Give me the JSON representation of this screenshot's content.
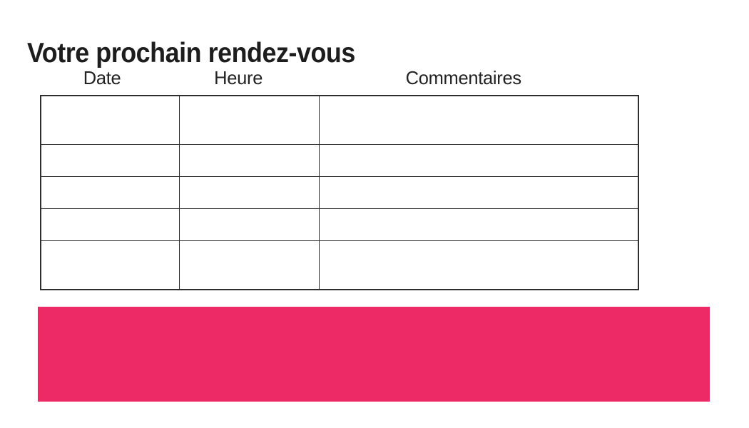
{
  "page": {
    "title": "Votre prochain rendez-vous"
  },
  "table": {
    "headers": [
      "Date",
      "Heure",
      "Commentaires"
    ],
    "rows": [
      [
        "",
        "",
        ""
      ],
      [
        "",
        "",
        ""
      ],
      [
        "",
        "",
        ""
      ],
      [
        "",
        "",
        ""
      ],
      [
        "",
        "",
        ""
      ]
    ]
  },
  "banner": {
    "color": "#ED2A66"
  },
  "colors": {
    "text": "#1d1d1d",
    "table_border": "#2e2e2e",
    "background": "#ffffff"
  }
}
